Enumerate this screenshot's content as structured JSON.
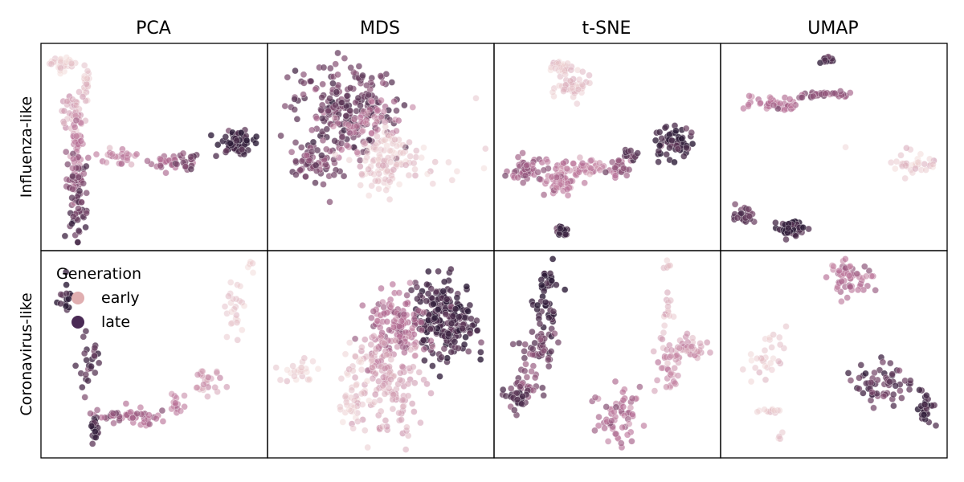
{
  "chart_data": {
    "type": "scatter",
    "columns": [
      "PCA",
      "MDS",
      "t-SNE",
      "UMAP"
    ],
    "rows": [
      "Influenza-like",
      "Coronavirus-like"
    ],
    "legend": {
      "title": "Generation",
      "position": "upper-left of bottom-left panel",
      "entries": [
        {
          "label": "early",
          "color": "#e0aeb0"
        },
        {
          "label": "late",
          "color": "#4a2a55"
        }
      ]
    },
    "color_scale": {
      "low": "#f0d4d2",
      "mid": "#b56a93",
      "high": "#2a1a36"
    },
    "ticks": "none",
    "axis_range": [
      0,
      1
    ],
    "panels": [
      {
        "row": 0,
        "col": 0,
        "clusters": [
          {
            "x": 0.07,
            "y": 0.93,
            "sx": 0.03,
            "sy": 0.02,
            "n": 30,
            "g": 0.05
          },
          {
            "x": 0.18,
            "y": 0.82,
            "sx": 0.01,
            "sy": 0.04,
            "n": 20,
            "g": 0.12
          },
          {
            "x": 0.12,
            "y": 0.67,
            "sx": 0.03,
            "sy": 0.06,
            "n": 40,
            "g": 0.25
          },
          {
            "x": 0.14,
            "y": 0.52,
            "sx": 0.015,
            "sy": 0.08,
            "n": 30,
            "g": 0.45
          },
          {
            "x": 0.14,
            "y": 0.34,
            "sx": 0.025,
            "sy": 0.06,
            "n": 45,
            "g": 0.65
          },
          {
            "x": 0.15,
            "y": 0.15,
            "sx": 0.02,
            "sy": 0.07,
            "n": 35,
            "g": 0.8
          },
          {
            "x": 0.32,
            "y": 0.45,
            "sx": 0.05,
            "sy": 0.02,
            "n": 25,
            "g": 0.4
          },
          {
            "x": 0.55,
            "y": 0.43,
            "sx": 0.04,
            "sy": 0.03,
            "n": 25,
            "g": 0.55
          },
          {
            "x": 0.65,
            "y": 0.42,
            "sx": 0.03,
            "sy": 0.025,
            "n": 20,
            "g": 0.7
          },
          {
            "x": 0.88,
            "y": 0.53,
            "sx": 0.04,
            "sy": 0.03,
            "n": 70,
            "g": 0.95
          }
        ]
      },
      {
        "row": 0,
        "col": 1,
        "clusters": [
          {
            "x": 0.33,
            "y": 0.7,
            "sx": 0.12,
            "sy": 0.12,
            "n": 220,
            "g": 0.75
          },
          {
            "x": 0.18,
            "y": 0.42,
            "sx": 0.06,
            "sy": 0.05,
            "n": 60,
            "g": 0.7
          },
          {
            "x": 0.44,
            "y": 0.62,
            "sx": 0.08,
            "sy": 0.07,
            "n": 60,
            "g": 0.4
          },
          {
            "x": 0.55,
            "y": 0.45,
            "sx": 0.07,
            "sy": 0.07,
            "n": 80,
            "g": 0.1
          },
          {
            "x": 0.5,
            "y": 0.35,
            "sx": 0.04,
            "sy": 0.05,
            "n": 30,
            "g": 0.12
          },
          {
            "x": 0.8,
            "y": 0.45,
            "sx": 0.15,
            "sy": 0.2,
            "n": 10,
            "g": 0.02
          }
        ]
      },
      {
        "row": 0,
        "col": 2,
        "clusters": [
          {
            "x": 0.28,
            "y": 0.91,
            "sx": 0.03,
            "sy": 0.02,
            "n": 30,
            "g": 0.1
          },
          {
            "x": 0.35,
            "y": 0.8,
            "sx": 0.04,
            "sy": 0.03,
            "n": 45,
            "g": 0.1
          },
          {
            "x": 0.12,
            "y": 0.38,
            "sx": 0.04,
            "sy": 0.03,
            "n": 45,
            "g": 0.6
          },
          {
            "x": 0.3,
            "y": 0.37,
            "sx": 0.05,
            "sy": 0.03,
            "n": 45,
            "g": 0.45
          },
          {
            "x": 0.28,
            "y": 0.3,
            "sx": 0.03,
            "sy": 0.03,
            "n": 25,
            "g": 0.45
          },
          {
            "x": 0.4,
            "y": 0.39,
            "sx": 0.05,
            "sy": 0.02,
            "n": 30,
            "g": 0.35
          },
          {
            "x": 0.55,
            "y": 0.39,
            "sx": 0.03,
            "sy": 0.02,
            "n": 25,
            "g": 0.55
          },
          {
            "x": 0.6,
            "y": 0.47,
            "sx": 0.02,
            "sy": 0.015,
            "n": 15,
            "g": 0.8
          },
          {
            "x": 0.82,
            "y": 0.52,
            "sx": 0.05,
            "sy": 0.04,
            "n": 60,
            "g": 0.92
          },
          {
            "x": 0.29,
            "y": 0.07,
            "sx": 0.015,
            "sy": 0.02,
            "n": 20,
            "g": 0.9
          }
        ]
      },
      {
        "row": 0,
        "col": 3,
        "clusters": [
          {
            "x": 0.47,
            "y": 0.95,
            "sx": 0.03,
            "sy": 0.01,
            "n": 15,
            "g": 0.9
          },
          {
            "x": 0.23,
            "y": 0.72,
            "sx": 0.06,
            "sy": 0.02,
            "n": 40,
            "g": 0.5
          },
          {
            "x": 0.45,
            "y": 0.77,
            "sx": 0.06,
            "sy": 0.01,
            "n": 35,
            "g": 0.65
          },
          {
            "x": 0.56,
            "y": 0.51,
            "sx": 0.005,
            "sy": 0.005,
            "n": 1,
            "g": 0.1
          },
          {
            "x": 0.87,
            "y": 0.42,
            "sx": 0.06,
            "sy": 0.03,
            "n": 35,
            "g": 0.1
          },
          {
            "x": 0.08,
            "y": 0.14,
            "sx": 0.03,
            "sy": 0.03,
            "n": 25,
            "g": 0.8
          },
          {
            "x": 0.3,
            "y": 0.08,
            "sx": 0.03,
            "sy": 0.02,
            "n": 60,
            "g": 0.95
          }
        ]
      },
      {
        "row": 1,
        "col": 0,
        "clusters": [
          {
            "x": 0.95,
            "y": 0.95,
            "sx": 0.01,
            "sy": 0.02,
            "n": 5,
            "g": 0.05
          },
          {
            "x": 0.88,
            "y": 0.72,
            "sx": 0.02,
            "sy": 0.08,
            "n": 25,
            "g": 0.1
          },
          {
            "x": 0.74,
            "y": 0.35,
            "sx": 0.04,
            "sy": 0.03,
            "n": 25,
            "g": 0.3
          },
          {
            "x": 0.6,
            "y": 0.25,
            "sx": 0.03,
            "sy": 0.02,
            "n": 15,
            "g": 0.4
          },
          {
            "x": 0.45,
            "y": 0.17,
            "sx": 0.05,
            "sy": 0.02,
            "n": 25,
            "g": 0.5
          },
          {
            "x": 0.32,
            "y": 0.18,
            "sx": 0.04,
            "sy": 0.02,
            "n": 25,
            "g": 0.6
          },
          {
            "x": 0.22,
            "y": 0.12,
            "sx": 0.01,
            "sy": 0.04,
            "n": 20,
            "g": 0.9
          },
          {
            "x": 0.2,
            "y": 0.45,
            "sx": 0.03,
            "sy": 0.08,
            "n": 25,
            "g": 0.85
          },
          {
            "x": 0.08,
            "y": 0.78,
            "sx": 0.02,
            "sy": 0.04,
            "n": 15,
            "g": 0.95
          }
        ]
      },
      {
        "row": 1,
        "col": 1,
        "clusters": [
          {
            "x": 0.8,
            "y": 0.68,
            "sx": 0.07,
            "sy": 0.1,
            "n": 220,
            "g": 0.9
          },
          {
            "x": 0.58,
            "y": 0.65,
            "sx": 0.07,
            "sy": 0.08,
            "n": 130,
            "g": 0.5
          },
          {
            "x": 0.48,
            "y": 0.45,
            "sx": 0.04,
            "sy": 0.08,
            "n": 40,
            "g": 0.3
          },
          {
            "x": 0.58,
            "y": 0.3,
            "sx": 0.06,
            "sy": 0.12,
            "n": 90,
            "g": 0.25
          },
          {
            "x": 0.38,
            "y": 0.3,
            "sx": 0.04,
            "sy": 0.1,
            "n": 60,
            "g": 0.1
          },
          {
            "x": 0.12,
            "y": 0.41,
            "sx": 0.05,
            "sy": 0.03,
            "n": 25,
            "g": 0.05
          }
        ]
      },
      {
        "row": 1,
        "col": 2,
        "clusters": [
          {
            "x": 0.22,
            "y": 0.87,
            "sx": 0.03,
            "sy": 0.05,
            "n": 25,
            "g": 0.95
          },
          {
            "x": 0.2,
            "y": 0.72,
            "sx": 0.03,
            "sy": 0.04,
            "n": 20,
            "g": 0.9
          },
          {
            "x": 0.18,
            "y": 0.53,
            "sx": 0.04,
            "sy": 0.06,
            "n": 45,
            "g": 0.75
          },
          {
            "x": 0.13,
            "y": 0.36,
            "sx": 0.03,
            "sy": 0.05,
            "n": 30,
            "g": 0.7
          },
          {
            "x": 0.08,
            "y": 0.27,
            "sx": 0.03,
            "sy": 0.03,
            "n": 25,
            "g": 0.85
          },
          {
            "x": 0.78,
            "y": 0.96,
            "sx": 0.01,
            "sy": 0.02,
            "n": 6,
            "g": 0.1
          },
          {
            "x": 0.77,
            "y": 0.7,
            "sx": 0.02,
            "sy": 0.06,
            "n": 15,
            "g": 0.2
          },
          {
            "x": 0.87,
            "y": 0.53,
            "sx": 0.05,
            "sy": 0.04,
            "n": 45,
            "g": 0.3
          },
          {
            "x": 0.78,
            "y": 0.4,
            "sx": 0.03,
            "sy": 0.05,
            "n": 30,
            "g": 0.35
          },
          {
            "x": 0.55,
            "y": 0.18,
            "sx": 0.05,
            "sy": 0.07,
            "n": 60,
            "g": 0.5
          }
        ]
      },
      {
        "row": 1,
        "col": 3,
        "clusters": [
          {
            "x": 0.58,
            "y": 0.9,
            "sx": 0.05,
            "sy": 0.05,
            "n": 60,
            "g": 0.5
          },
          {
            "x": 0.18,
            "y": 0.5,
            "sx": 0.05,
            "sy": 0.06,
            "n": 30,
            "g": 0.1
          },
          {
            "x": 0.2,
            "y": 0.21,
            "sx": 0.04,
            "sy": 0.005,
            "n": 12,
            "g": 0.1
          },
          {
            "x": 0.25,
            "y": 0.07,
            "sx": 0.005,
            "sy": 0.015,
            "n": 4,
            "g": 0.1
          },
          {
            "x": 0.73,
            "y": 0.36,
            "sx": 0.07,
            "sy": 0.05,
            "n": 60,
            "g": 0.8
          },
          {
            "x": 0.93,
            "y": 0.22,
            "sx": 0.02,
            "sy": 0.05,
            "n": 30,
            "g": 0.95
          }
        ]
      }
    ]
  }
}
